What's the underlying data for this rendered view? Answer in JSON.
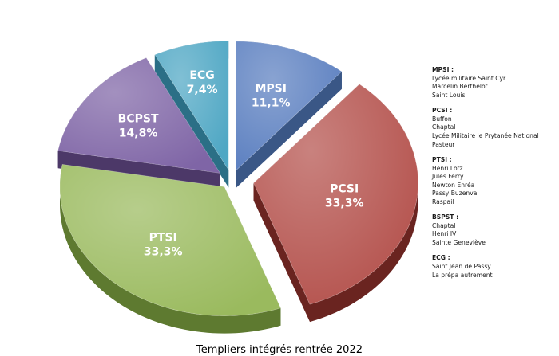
{
  "chart_data": {
    "type": "pie",
    "style": "3d-exploded",
    "slices": [
      {
        "label": "MPSI",
        "value": 11.1,
        "display": "11,1%",
        "color": "#5b7fc0",
        "side_color": "#3a5786"
      },
      {
        "label": "PCSI",
        "value": 33.3,
        "display": "33,3%",
        "color": "#b4514c",
        "side_color": "#6a2420"
      },
      {
        "label": "PTSI",
        "value": 33.3,
        "display": "33,3%",
        "color": "#9aba5e",
        "side_color": "#5e7a30"
      },
      {
        "label": "BCPST",
        "value": 14.8,
        "display": "14,8%",
        "color": "#7f65a6",
        "side_color": "#4c3868"
      },
      {
        "label": "ECG",
        "value": 7.4,
        "display": "7,4%",
        "color": "#4fa7c4",
        "side_color": "#2b6f86"
      }
    ]
  },
  "legend": [
    {
      "title": "MPSI :",
      "items": [
        "Lycée militaire Saint Cyr",
        "Marcelin Berthelot",
        "Saint Louis"
      ]
    },
    {
      "title": "PCSI :",
      "items": [
        "Buffon",
        "Chaptal",
        "Lycée Militaire le Prytanée National",
        "Pasteur"
      ]
    },
    {
      "title": "PTSI :",
      "items": [
        "Henri Lotz",
        "Jules Ferry",
        "Newton Enréa",
        "Passy Buzenval",
        "Raspail"
      ]
    },
    {
      "title": "BSPST :",
      "items": [
        "Chaptal",
        "Henri IV",
        "Sainte Geneviève"
      ]
    },
    {
      "title": "ECG :",
      "items": [
        "Saint Jean de Passy",
        "La prépa autrement"
      ]
    }
  ],
  "caption": "Templiers intégrés rentrée 2022"
}
